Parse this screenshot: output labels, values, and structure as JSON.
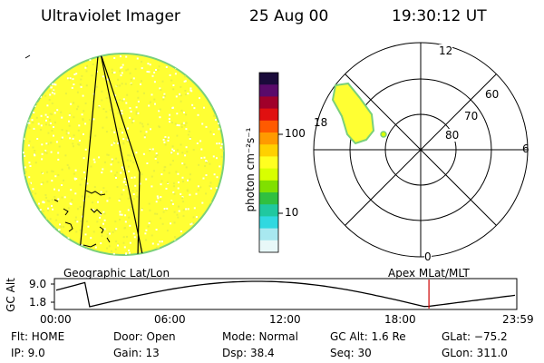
{
  "header": {
    "instrument": "Ultraviolet Imager",
    "date": "25 Aug 00",
    "time": "19:30:12 UT"
  },
  "colorbar": {
    "unit_label": "photon cm⁻²s⁻¹",
    "ticks": [
      "100",
      "10"
    ],
    "scale": "log",
    "colors": [
      "#1a0a3a",
      "#5a0a6a",
      "#a0002a",
      "#e01010",
      "#ff5a00",
      "#ff9a00",
      "#ffd000",
      "#ffff20",
      "#d8ff00",
      "#80e000",
      "#30c040",
      "#20c8a0",
      "#30d8e0",
      "#a8e8f0",
      "#e8f8f8"
    ]
  },
  "polar_plot": {
    "clock_labels": {
      "top": "12",
      "left": "18",
      "right": "6",
      "bottom": "0"
    },
    "ring_labels": [
      "60",
      "70",
      "80"
    ]
  },
  "panel_titles": {
    "left": "Geographic Lat/Lon",
    "right": "Apex MLat/MLT"
  },
  "altitude_plot": {
    "ylabel": "GC Alt",
    "y_ticks": [
      "9.0",
      "1.8"
    ],
    "x_ticks": [
      "00:00",
      "06:00",
      "12:00",
      "18:00",
      "23:59"
    ],
    "marker_time": "19:30",
    "marker_color": "#cc0000"
  },
  "info": {
    "flt": "Flt: HOME",
    "ip": "IP:  9.0",
    "door": "Door: Open",
    "gain": "Gain: 13",
    "mode": "Mode: Normal",
    "dsp": "Dsp:   38.4",
    "gc_alt": "GC Alt: 1.6 Re",
    "seq": "Seq: 30",
    "glat": "GLat: −75.2",
    "glon": "GLon: 311.0"
  }
}
